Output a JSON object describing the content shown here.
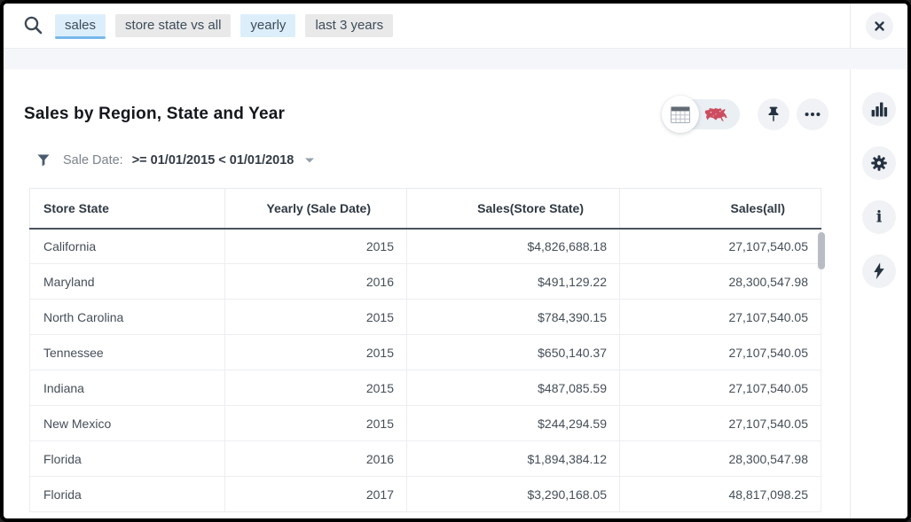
{
  "search": {
    "tokens": [
      {
        "label": "sales",
        "highlighted": true,
        "active": true
      },
      {
        "label": "store state vs all",
        "highlighted": false,
        "active": false
      },
      {
        "label": "yearly",
        "highlighted": true,
        "active": false
      },
      {
        "label": "last 3 years",
        "highlighted": false,
        "active": false
      }
    ]
  },
  "header": {
    "title": "Sales by Region, State and Year"
  },
  "toolbar": {
    "view_toggle": {
      "options": [
        "table-view",
        "map-view"
      ],
      "selected": "table-view"
    },
    "buttons": [
      "pin",
      "more-options"
    ]
  },
  "filter": {
    "label": "Sale Date:",
    "value": ">= 01/01/2015 < 01/01/2018"
  },
  "table": {
    "columns": [
      "Store State",
      "Yearly (Sale Date)",
      "Sales(Store State)",
      "Sales(all)"
    ],
    "rows": [
      [
        "California",
        "2015",
        "$4,826,688.18",
        "27,107,540.05"
      ],
      [
        "Maryland",
        "2016",
        "$491,129.22",
        "28,300,547.98"
      ],
      [
        "North Carolina",
        "2015",
        "$784,390.15",
        "27,107,540.05"
      ],
      [
        "Tennessee",
        "2015",
        "$650,140.37",
        "27,107,540.05"
      ],
      [
        "Indiana",
        "2015",
        "$487,085.59",
        "27,107,540.05"
      ],
      [
        "New Mexico",
        "2015",
        "$244,294.59",
        "27,107,540.05"
      ],
      [
        "Florida",
        "2016",
        "$1,894,384.12",
        "28,300,547.98"
      ],
      [
        "Florida",
        "2017",
        "$3,290,168.05",
        "48,817,098.25"
      ]
    ]
  },
  "sidebar": {
    "icons": [
      "chart",
      "gear",
      "info",
      "bolt"
    ]
  },
  "icons": {
    "info_glyph": "i"
  },
  "colors": {
    "token_blue_bg": "#ddeefb",
    "token_gray_bg": "#e9e9ea",
    "active_underline": "#76b8ec",
    "icon_navy": "#243140",
    "map_red": "#cc4d60",
    "header_underline": "#4a5460"
  }
}
